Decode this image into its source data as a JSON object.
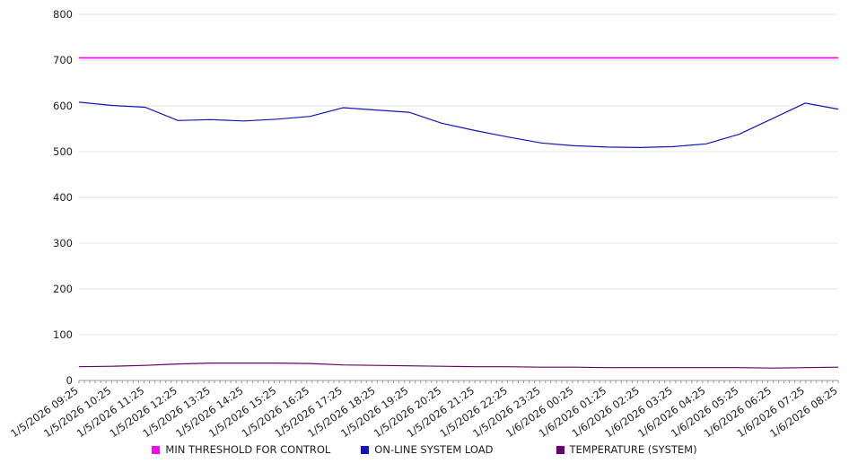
{
  "chart_data": {
    "type": "line",
    "title": "",
    "xlabel": "",
    "ylabel": "",
    "ylim": [
      0,
      800
    ],
    "ytick_step": 100,
    "grid": true,
    "legend_position": "bottom",
    "categories": [
      "1/5/2026 09:25",
      "1/5/2026 10:25",
      "1/5/2026 11:25",
      "1/5/2026 12:25",
      "1/5/2026 13:25",
      "1/5/2026 14:25",
      "1/5/2026 15:25",
      "1/5/2026 16:25",
      "1/5/2026 17:25",
      "1/5/2026 18:25",
      "1/5/2026 19:25",
      "1/5/2026 20:25",
      "1/5/2026 21:25",
      "1/5/2026 22:25",
      "1/5/2026 23:25",
      "1/6/2026 00:25",
      "1/6/2026 01:25",
      "1/6/2026 02:25",
      "1/6/2026 03:25",
      "1/6/2026 04:25",
      "1/6/2026 05:25",
      "1/6/2026 06:25",
      "1/6/2026 07:25",
      "1/6/2026 08:25"
    ],
    "series": [
      {
        "name": "MIN THRESHOLD FOR CONTROL",
        "color": "#ff00ff",
        "values": [
          705,
          705,
          705,
          705,
          705,
          705,
          705,
          705,
          705,
          705,
          705,
          705,
          705,
          705,
          705,
          705,
          705,
          705,
          705,
          705,
          705,
          705,
          705,
          705
        ]
      },
      {
        "name": "ON-LINE SYSTEM LOAD",
        "color": "#1414b8",
        "values": [
          608,
          601,
          597,
          568,
          570,
          567,
          571,
          577,
          596,
          591,
          586,
          562,
          546,
          532,
          519,
          513,
          510,
          509,
          511,
          517,
          538,
          572,
          606,
          593
        ]
      },
      {
        "name": "TEMPERATURE (SYSTEM)",
        "color": "#66006e",
        "values": [
          30,
          31,
          33,
          36,
          38,
          38,
          38,
          37,
          34,
          33,
          32,
          31,
          30,
          30,
          29,
          29,
          28,
          28,
          28,
          28,
          28,
          27,
          28,
          29
        ]
      }
    ]
  }
}
